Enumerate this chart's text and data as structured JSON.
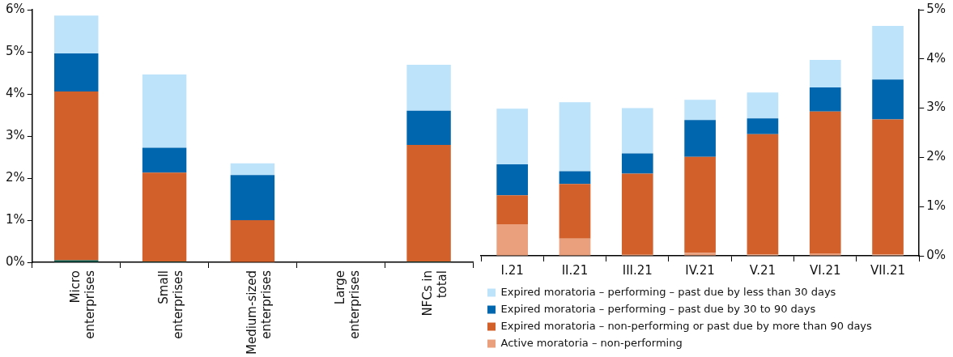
{
  "chart_data": [
    {
      "type": "bar",
      "stacked": true,
      "categories": [
        "Micro enterprises",
        "Small enterprises",
        "Medium-sized enterprises",
        "Large enterprises",
        "NFCs in total"
      ],
      "series": [
        {
          "color": "#0d5c4e",
          "values": [
            0.05,
            0.02,
            0,
            0,
            0.02
          ]
        },
        {
          "color": "#d2602a",
          "values": [
            4.01,
            2.11,
            1.0,
            0,
            2.77
          ]
        },
        {
          "color": "#0066ad",
          "values": [
            0.9,
            0.59,
            1.07,
            0,
            0.81
          ]
        },
        {
          "color": "#bde3fb",
          "values": [
            0.9,
            1.74,
            0.28,
            0,
            1.09
          ]
        }
      ],
      "ylim": [
        0,
        6
      ],
      "yticks": [
        {
          "value": 0,
          "label": "0%"
        },
        {
          "value": 1,
          "label": "1%"
        },
        {
          "value": 2,
          "label": "2%"
        },
        {
          "value": 3,
          "label": "3%"
        },
        {
          "value": 4,
          "label": "4%"
        },
        {
          "value": 5,
          "label": "5%"
        },
        {
          "value": 6,
          "label": "6%"
        }
      ],
      "grid": false,
      "legend": false
    },
    {
      "type": "bar",
      "stacked": true,
      "categories": [
        "I.21",
        "II.21",
        "III.21",
        "IV.21",
        "V.21",
        "VI.21",
        "VII.21"
      ],
      "series": [
        {
          "name": "Active moratoria – non-performing",
          "color": "#eaa07c",
          "values": [
            0.64,
            0.35,
            0.02,
            0.06,
            0.03,
            0.05,
            0.03
          ],
          "axis": "y2"
        },
        {
          "name": "Expired moratoria – non-performing or past due by more than 90 days",
          "color": "#d2602a",
          "values": [
            0.59,
            1.11,
            1.65,
            1.95,
            2.44,
            2.88,
            2.74
          ],
          "axis": "y2"
        },
        {
          "name": "Expired moratoria – performing – past due by 30 to 90 days",
          "color": "#0066ad",
          "values": [
            0.63,
            0.26,
            0.41,
            0.75,
            0.32,
            0.49,
            0.81
          ],
          "axis": "y2"
        },
        {
          "name": "Expired moratoria – performing – past due by less than 30 days",
          "color": "#bde3fb",
          "values": [
            1.13,
            1.4,
            0.92,
            0.41,
            0.53,
            0.56,
            1.09
          ],
          "axis": "y2"
        }
      ],
      "y2lim": [
        0,
        5
      ],
      "y2ticks": [
        {
          "value": 0,
          "label": "0%"
        },
        {
          "value": 1,
          "label": "1%"
        },
        {
          "value": 2,
          "label": "2%"
        },
        {
          "value": 3,
          "label": "3%"
        },
        {
          "value": 4,
          "label": "4%"
        },
        {
          "value": 5,
          "label": "5%"
        }
      ],
      "tick_labels": "x",
      "grid": false,
      "legend": "bottom"
    }
  ]
}
